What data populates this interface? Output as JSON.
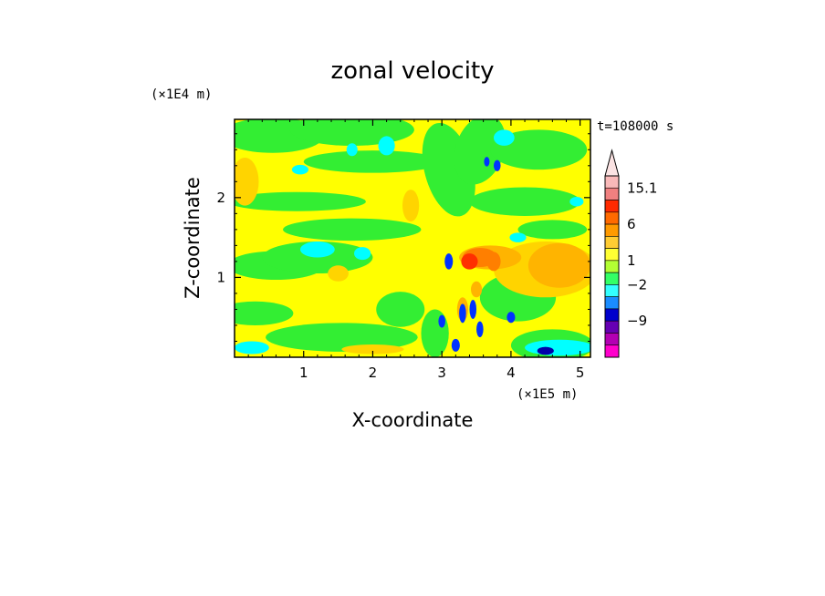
{
  "chart_data": {
    "type": "heatmap",
    "title": "zonal velocity",
    "xlabel": "X-coordinate",
    "ylabel": "Z-coordinate",
    "x_unit": "(×1E5 m)",
    "y_unit": "(×1E4 m)",
    "time_label": "t=108000 s",
    "xlim": [
      0,
      5.15
    ],
    "ylim": [
      0,
      2.98
    ],
    "x_ticks": [
      "1",
      "2",
      "3",
      "4",
      "5"
    ],
    "x_tick_values": [
      1,
      2,
      3,
      4,
      5
    ],
    "y_ticks": [
      "1",
      "2"
    ],
    "y_tick_values": [
      1,
      2
    ],
    "colorbar": {
      "labels": [
        "15.1",
        "6",
        "1",
        "−2",
        "−9"
      ],
      "colors": [
        "#f9b9b9",
        "#f08080",
        "#ff2a00",
        "#ff6a00",
        "#ff9a00",
        "#ffcc33",
        "#ffff33",
        "#b3ff33",
        "#33ff66",
        "#33ffff",
        "#1a8cff",
        "#0000cc",
        "#6600b3",
        "#b300b3",
        "#ff00cc"
      ],
      "triangle_color": "#fbe3e3"
    },
    "field_colors": {
      "pos1": "#ffff00",
      "pos2": "#ffd400",
      "pos3": "#ffb400",
      "pos4": "#ff7f00",
      "pos5": "#ff3000",
      "zero": "#33ee33",
      "neg1": "#22ee55",
      "neg2": "#00ffff",
      "neg3": "#0033ff",
      "neg4": "#0000aa"
    }
  }
}
